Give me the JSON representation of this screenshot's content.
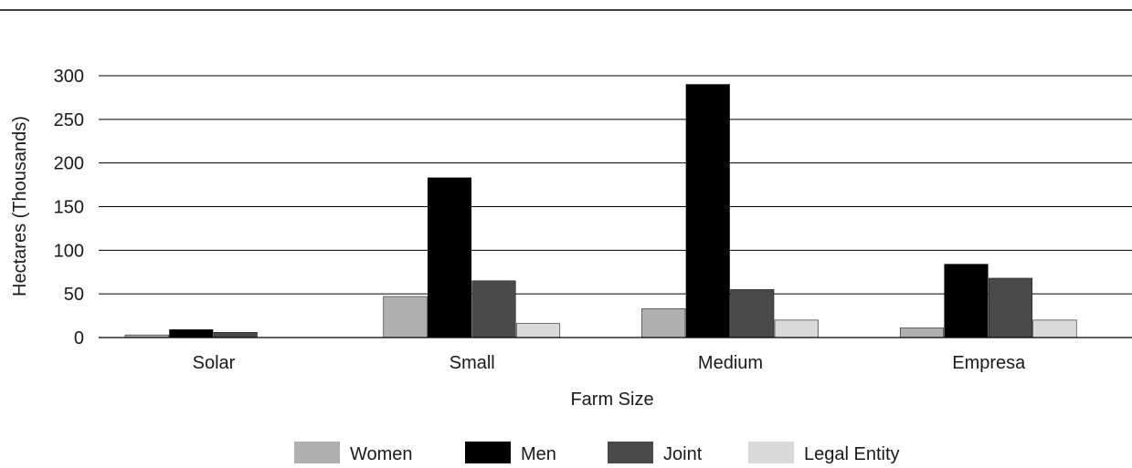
{
  "chart_data": {
    "type": "bar",
    "title": "",
    "xlabel": "Farm Size",
    "ylabel": "Hectares (Thousands)",
    "ylim": [
      0,
      300
    ],
    "yticks": [
      0,
      50,
      100,
      150,
      200,
      250,
      300
    ],
    "grid": true,
    "legend_position": "bottom",
    "categories": [
      "Solar",
      "Small",
      "Medium",
      "Empresa"
    ],
    "series": [
      {
        "name": "Women",
        "color": "#b0b0b0",
        "values": [
          3,
          47,
          33,
          11
        ]
      },
      {
        "name": "Men",
        "color": "#000000",
        "values": [
          9,
          183,
          290,
          84
        ]
      },
      {
        "name": "Joint",
        "color": "#4a4a4a",
        "values": [
          6,
          65,
          55,
          68
        ]
      },
      {
        "name": "Legal Entity",
        "color": "#d9d9d9",
        "values": [
          0,
          16,
          20,
          20
        ]
      }
    ]
  }
}
